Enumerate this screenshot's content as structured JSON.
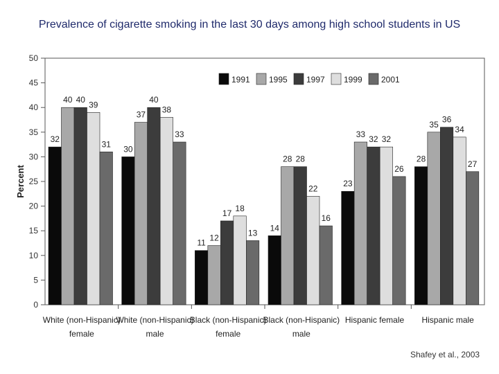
{
  "slide": {
    "title": "Prevalence of cigarette smoking in the last 30 days among high school students in US",
    "citation": "Shafey et al., 2003"
  },
  "chart_data": {
    "type": "bar",
    "ylabel": "Percent",
    "ylim": [
      0,
      50
    ],
    "yticks": [
      0,
      5,
      10,
      15,
      20,
      25,
      30,
      35,
      40,
      45,
      50
    ],
    "legend_position": "top-right",
    "grid": false,
    "categories": [
      [
        "White (non-Hispanic)",
        "female"
      ],
      [
        "White (non-Hispanic)",
        "male"
      ],
      [
        "Black (non-Hispanic)",
        "female"
      ],
      [
        "Black (non-Hispanic)",
        "male"
      ],
      [
        "Hispanic female"
      ],
      [
        "Hispanic male"
      ]
    ],
    "series": [
      {
        "name": "1991",
        "color": "#0a0a0a",
        "values": [
          32,
          30,
          11,
          14,
          23,
          28
        ]
      },
      {
        "name": "1995",
        "color": "#a8a8a8",
        "values": [
          40,
          37,
          12,
          28,
          33,
          35
        ]
      },
      {
        "name": "1997",
        "color": "#3c3c3c",
        "values": [
          40,
          40,
          17,
          28,
          32,
          36
        ]
      },
      {
        "name": "1999",
        "color": "#dedede",
        "values": [
          39,
          38,
          18,
          22,
          32,
          34
        ]
      },
      {
        "name": "2001",
        "color": "#6a6a6a",
        "values": [
          31,
          33,
          13,
          16,
          26,
          27
        ]
      }
    ]
  }
}
